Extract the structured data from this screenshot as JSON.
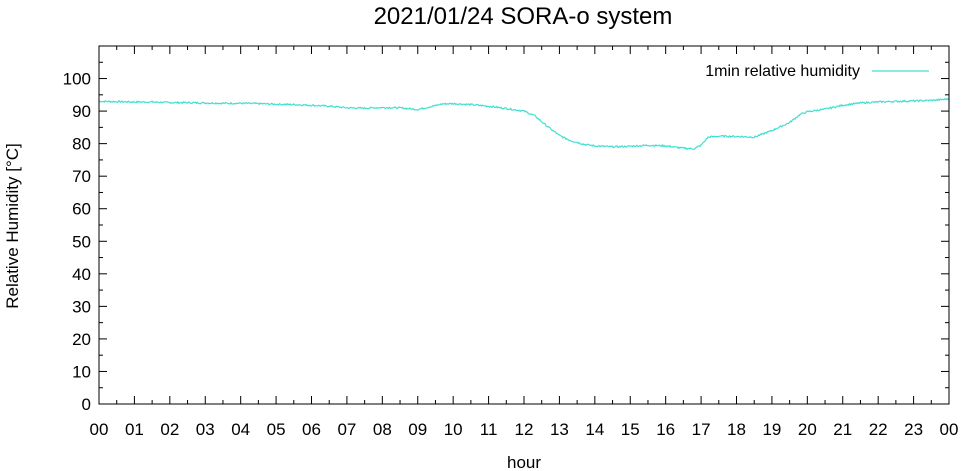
{
  "chart_data": {
    "type": "line",
    "title": "2021/01/24 SORA-o system",
    "xlabel": "hour",
    "ylabel": "Relative Humidity [°C]",
    "xlim": [
      0,
      24
    ],
    "ylim": [
      0,
      110
    ],
    "x_ticks": [
      "00",
      "01",
      "02",
      "03",
      "04",
      "05",
      "06",
      "07",
      "08",
      "09",
      "10",
      "11",
      "12",
      "13",
      "14",
      "15",
      "16",
      "17",
      "18",
      "19",
      "20",
      "21",
      "22",
      "23",
      "00"
    ],
    "y_ticks": [
      0,
      10,
      20,
      30,
      40,
      50,
      60,
      70,
      80,
      90,
      100
    ],
    "grid": false,
    "legend": "top-right",
    "line_color": "#40e0d0",
    "series": [
      {
        "name": "1min relative humidity",
        "x": [
          0,
          0.5,
          1,
          1.5,
          2,
          2.5,
          3,
          3.5,
          4,
          4.5,
          5,
          5.5,
          6,
          6.5,
          7,
          7.5,
          8,
          8.5,
          9,
          9.3,
          9.7,
          10,
          10.5,
          11,
          11.5,
          12,
          12.3,
          12.6,
          13,
          13.3,
          13.7,
          14,
          14.5,
          15,
          15.5,
          16,
          16.5,
          16.8,
          17,
          17.2,
          17.5,
          18,
          18.5,
          19,
          19.5,
          19.8,
          20,
          20.5,
          21,
          21.5,
          22,
          22.5,
          23,
          23.5,
          24
        ],
        "y": [
          93,
          92.9,
          92.8,
          92.8,
          92.6,
          92.6,
          92.5,
          92.4,
          92.4,
          92.3,
          92.1,
          92,
          91.8,
          91.5,
          91,
          90.9,
          91.1,
          91,
          90.5,
          91.2,
          92.2,
          92.3,
          92,
          91.5,
          90.8,
          90,
          88.6,
          85.8,
          82.5,
          81,
          79.8,
          79.3,
          79,
          79.2,
          79.5,
          79.3,
          78.6,
          78.4,
          79.5,
          82,
          82.3,
          82.2,
          82,
          84,
          86.5,
          89,
          89.8,
          90.6,
          91.8,
          92.5,
          92.8,
          93,
          93.1,
          93.3,
          93.7
        ]
      }
    ]
  }
}
